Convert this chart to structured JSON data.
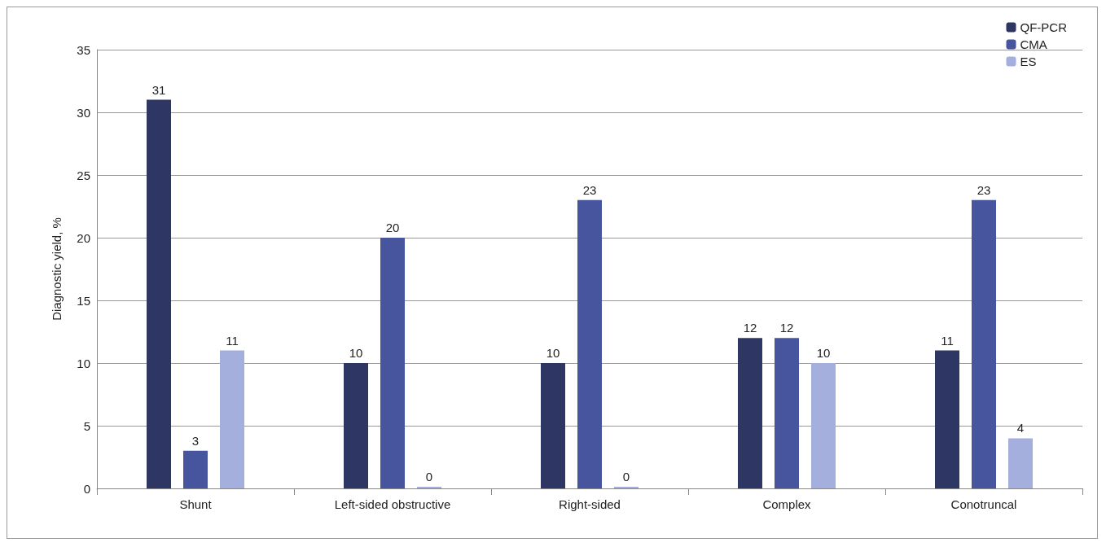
{
  "chart_data": {
    "type": "bar",
    "ylabel": "Diagnostic yield, %",
    "categories": [
      "Shunt",
      "Left-sided obstructive",
      "Right-sided",
      "Complex",
      "Conotruncal"
    ],
    "series": [
      {
        "name": "QF-PCR",
        "color": "#2e3664",
        "values": [
          31,
          10,
          10,
          12,
          11
        ]
      },
      {
        "name": "CMA",
        "color": "#46559d",
        "values": [
          3,
          20,
          23,
          12,
          23
        ]
      },
      {
        "name": "ES",
        "color": "#a4afdd",
        "values": [
          11,
          0,
          0,
          10,
          4
        ]
      }
    ],
    "ylim": [
      0,
      35
    ],
    "yticks": [
      0,
      5,
      10,
      15,
      20,
      25,
      30,
      35
    ],
    "grid": "y",
    "legend": "top right",
    "data_labels": true
  }
}
